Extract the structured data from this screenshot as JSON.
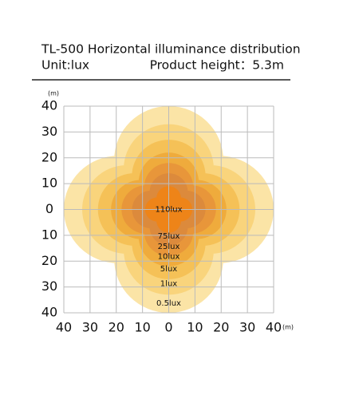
{
  "title": "TL-500 Horizontal illuminance distribution",
  "unit": "Unit:lux",
  "height": "Product height：5.3m",
  "chart_data": {
    "type": "contour",
    "x_unit": "(m)",
    "y_unit": "(m)",
    "xlim": [
      -40,
      40
    ],
    "ylim": [
      -40,
      40
    ],
    "xticks": [
      {
        "value": -40,
        "label": "40"
      },
      {
        "value": -30,
        "label": "30"
      },
      {
        "value": -20,
        "label": "20"
      },
      {
        "value": -10,
        "label": "10"
      },
      0,
      10,
      20,
      30,
      40
    ],
    "yticks": [
      40,
      30,
      20,
      10,
      0,
      {
        "value": -10,
        "label": "10"
      },
      {
        "value": -20,
        "label": "20"
      },
      {
        "value": -30,
        "label": "30"
      },
      {
        "value": -40,
        "label": "40"
      }
    ],
    "grid": true,
    "levels": [
      {
        "label": "0.5lux",
        "value": 0.5,
        "reach": 40,
        "color": "#fbe4a6"
      },
      {
        "label": "1lux",
        "value": 1,
        "reach": 33,
        "color": "#f9d47c"
      },
      {
        "label": "5lux",
        "value": 5,
        "reach": 27,
        "color": "#f5c157"
      },
      {
        "label": "10lux",
        "value": 10,
        "reach": 22,
        "color": "#efab3c"
      },
      {
        "label": "25lux",
        "value": 25,
        "reach": 18,
        "color": "#e8963a"
      },
      {
        "label": "75lux",
        "value": 75,
        "reach": 14,
        "color": "#dc8a3c"
      },
      {
        "label": "110lux",
        "value": 110,
        "reach": 9,
        "color": "#ee8418"
      }
    ]
  }
}
